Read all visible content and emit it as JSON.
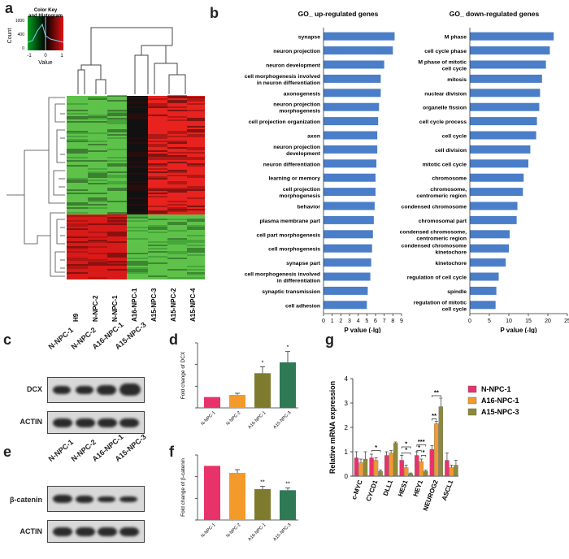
{
  "panels": {
    "a": "a",
    "b": "b",
    "c": "c",
    "d": "d",
    "e": "e",
    "f": "f",
    "g": "g"
  },
  "heatmap": {
    "key_title": "Color Key\nand Histogram",
    "key_title_lines": [
      "Color Key",
      "and Histogram"
    ],
    "count_label": "Count",
    "value_label": "Value",
    "y_ticks": [
      "0",
      "400",
      "1000"
    ],
    "x_ticks": [
      "-1",
      "0",
      "1"
    ],
    "samples": [
      "H9",
      "N-NPC-2",
      "N-NPC-1",
      "A16-NPC-1",
      "A15-NPC-3",
      "A15-NPC-2",
      "A15-NPC-4"
    ],
    "colors": {
      "high": "#e8221e",
      "low": "#5ec24a",
      "mid": "#000000"
    }
  },
  "chart_data": [
    {
      "type": "bar",
      "orientation": "horizontal",
      "title": "GO_ up-regulated genes",
      "xlabel": "P value (-lg)",
      "xlim": [
        0,
        9
      ],
      "xticks": [
        0,
        1,
        2,
        3,
        4,
        5,
        6,
        7,
        8,
        9
      ],
      "color": "#4a7ec8",
      "categories": [
        "synapse",
        "neuron projection",
        "neuron development",
        "cell morphogenesis involved in neuron differentiation",
        "axonogenesis",
        "neuron projection morphogenesis",
        "cell projection organization",
        "axon",
        "neuron projection development",
        "neuron differentiation",
        "learning or memory",
        "cell projection morphogenesis",
        "behavior",
        "plasma membrane part",
        "cell part morphogenesis",
        "cell morphogenesis",
        "synapse part",
        "cell morphogenesis involved in differentiation",
        "synaptic transmission",
        "cell adhesion"
      ],
      "label_lines": [
        [
          "synapse"
        ],
        [
          "neuron projection"
        ],
        [
          "neuron development"
        ],
        [
          "cell morphogenesis involved",
          "in  neuron differentiation"
        ],
        [
          "axonogenesis"
        ],
        [
          "neuron projection",
          "morphogenesis"
        ],
        [
          "cell projection organization"
        ],
        [
          "axon"
        ],
        [
          "neuron projection",
          "development"
        ],
        [
          "neuron differentiation"
        ],
        [
          "learning or memory"
        ],
        [
          "cell projection",
          "morphogenesis"
        ],
        [
          "behavior"
        ],
        [
          "plasma membrane part"
        ],
        [
          "cell part morphogenesis"
        ],
        [
          "cell morphogenesis"
        ],
        [
          "synapse part"
        ],
        [
          "cell morphogenesis involved",
          "in differentiation"
        ],
        [
          "synaptic transmission"
        ],
        [
          "cell adhesion"
        ]
      ],
      "values": [
        8.2,
        8.0,
        7.0,
        6.6,
        6.6,
        6.4,
        6.3,
        6.2,
        6.2,
        6.1,
        6.0,
        6.0,
        5.9,
        5.8,
        5.7,
        5.6,
        5.5,
        5.4,
        5.1,
        5.0
      ]
    },
    {
      "type": "bar",
      "orientation": "horizontal",
      "title": "GO_ down-regulated genes",
      "xlabel": "P value (-lg)",
      "xlim": [
        0,
        25
      ],
      "xticks": [
        0,
        5,
        10,
        15,
        20,
        25
      ],
      "color": "#4a7ec8",
      "categories": [
        "M phase",
        "cell cycle phase",
        "M phase of mitotic cell cycle",
        "mitosis",
        "nuclear division",
        "organelle fission",
        "cell cycle process",
        "cell cycle",
        "cell division",
        "mitotic cell cycle",
        "chromosome",
        "chromosome, centromeric region",
        "condensed chromosome",
        "chromosomal part",
        "condensed chromosome, centromeric region",
        "condensed chromosome kinetochore",
        "kinetochore",
        "regulation of cell cycle",
        "spindle",
        "regulation of mitotic cell cycle"
      ],
      "label_lines": [
        [
          "M phase"
        ],
        [
          "cell cycle phase"
        ],
        [
          "M phase of mitotic",
          "cell cycle"
        ],
        [
          "mitosis"
        ],
        [
          "nuclear division"
        ],
        [
          "organelle fission"
        ],
        [
          "cell cycle process"
        ],
        [
          "cell cycle"
        ],
        [
          "cell division"
        ],
        [
          "mitotic cell cycle"
        ],
        [
          "chromosome"
        ],
        [
          "chromosome,",
          "centromeric region"
        ],
        [
          "condensed chromosome"
        ],
        [
          "chromosomal part"
        ],
        [
          "condensed chromosome,",
          "centromeric region"
        ],
        [
          "condensed chromosome",
          "kinetochore"
        ],
        [
          "kinetochore"
        ],
        [
          "regulation of cell cycle"
        ],
        [
          "spindle"
        ],
        [
          "regulation of mitotic",
          "cell cycle"
        ]
      ],
      "values": [
        21.5,
        20.5,
        19.5,
        18.5,
        18.0,
        17.8,
        17.2,
        17.0,
        15.5,
        15.0,
        13.8,
        13.6,
        12.2,
        12.0,
        10.2,
        10.0,
        9.2,
        7.4,
        6.8,
        6.6
      ]
    },
    {
      "type": "bar",
      "title": "",
      "ylabel": "Fold change of DCX",
      "ylim": [
        0,
        6
      ],
      "categories": [
        "N-NPC-1",
        "N-NPC-2",
        "A16-NPC-1",
        "A15-NPC-3"
      ],
      "values": [
        1.0,
        1.2,
        3.2,
        4.2
      ],
      "errors": [
        0,
        0.15,
        0.6,
        1.0
      ],
      "significance": [
        "",
        "",
        "*",
        "*"
      ],
      "colors": [
        "#e8336a",
        "#f39a2a",
        "#7f7b2e",
        "#2e7a55"
      ]
    },
    {
      "type": "bar",
      "title": "",
      "ylabel": "Fold change of β-catenin",
      "ylim": [
        0,
        1.2
      ],
      "categories": [
        "N-NPC-1",
        "N-NPC-2",
        "A16-NPC-1",
        "A15-NPC-3"
      ],
      "values": [
        1.0,
        0.87,
        0.57,
        0.55
      ],
      "errors": [
        0,
        0.06,
        0.05,
        0.04
      ],
      "significance": [
        "",
        "",
        "**",
        "**"
      ],
      "colors": [
        "#e8336a",
        "#f39a2a",
        "#7f7b2e",
        "#2e7a55"
      ]
    },
    {
      "type": "bar",
      "title": "",
      "ylabel": "Relative mRNA expression",
      "ylim": [
        0,
        4
      ],
      "yticks": [
        0,
        1,
        2,
        3,
        4
      ],
      "categories": [
        "c-MYC",
        "CYCD1",
        "DLL1",
        "HES1",
        "HEY1",
        "NEUROG2",
        "ASCL1"
      ],
      "series": [
        {
          "name": "N-NPC-1",
          "color": "#e8336a",
          "values": [
            0.75,
            0.75,
            0.85,
            0.65,
            0.85,
            1.1,
            0.65
          ],
          "errors": [
            0.25,
            0.15,
            0.15,
            0.2,
            0.15,
            0.15,
            0.3
          ]
        },
        {
          "name": "A16-NPC-1",
          "color": "#f39a2a",
          "values": [
            0.55,
            0.65,
            0.95,
            0.35,
            0.6,
            2.15,
            0.35
          ],
          "errors": [
            0.15,
            0.1,
            0.1,
            0.1,
            0.1,
            0.1,
            0.1
          ]
        },
        {
          "name": "A15-NPC-3",
          "color": "#8c8a3a",
          "values": [
            0.7,
            0.2,
            1.35,
            0.1,
            0.2,
            2.85,
            0.45
          ],
          "errors": [
            0.3,
            0.05,
            0.05,
            0.03,
            0.05,
            0.35,
            0.2
          ]
        }
      ],
      "significance_labels": [
        "*",
        "*",
        "*",
        "*",
        "***",
        "*",
        "**",
        "**"
      ]
    }
  ],
  "blot_c": {
    "lanes": [
      "N-NPC-1",
      "N-NPC-2",
      "A16-NPC-1",
      "A15-NPC-3"
    ],
    "proteins": [
      "DCX",
      "ACTIN"
    ]
  },
  "blot_e": {
    "lanes": [
      "N-NPC-1",
      "N-NPC-2",
      "A16-NPC-1",
      "A15-NPC-3"
    ],
    "proteins": [
      "β-catenin",
      "ACTIN"
    ]
  }
}
